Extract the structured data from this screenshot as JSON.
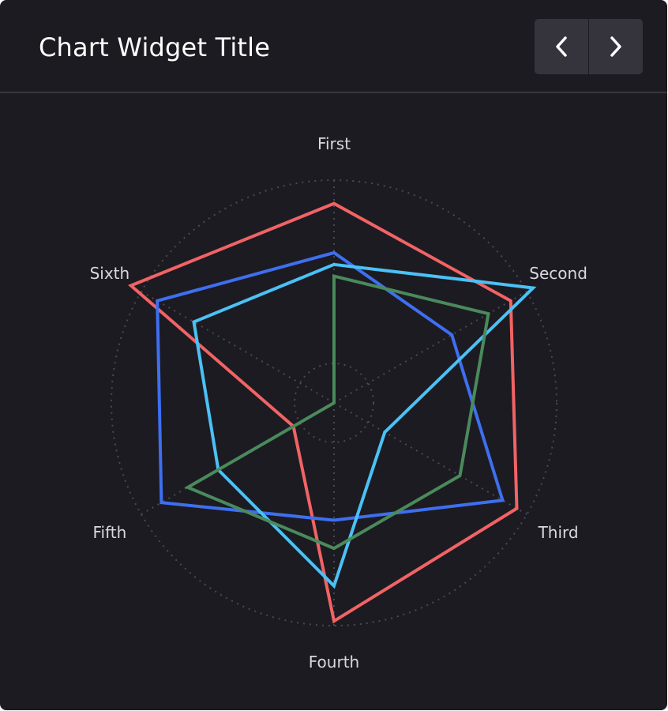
{
  "widget": {
    "title": "Chart Widget Title",
    "prev_icon": "chevron-left-icon",
    "next_icon": "chevron-right-icon"
  },
  "colors": {
    "background": "#1c1b22",
    "grid": "#4a4952",
    "button": "#35343c"
  },
  "chart_data": {
    "type": "radar",
    "axes": [
      "First",
      "Second",
      "Third",
      "Fourth",
      "Fifth",
      "Sixth"
    ],
    "range": [
      0,
      100
    ],
    "grid": "dotted",
    "series": [
      {
        "color": "#f16365",
        "values": [
          85,
          87,
          90,
          93,
          20,
          100
        ]
      },
      {
        "color": "#3e6ff0",
        "values": [
          64,
          58,
          83,
          50,
          85,
          87
        ]
      },
      {
        "color": "#4bc1f5",
        "values": [
          59,
          98,
          25,
          78,
          57,
          69
        ]
      },
      {
        "color": "#4a8a5c",
        "values": [
          54,
          76,
          62,
          62,
          72,
          0
        ]
      }
    ]
  }
}
